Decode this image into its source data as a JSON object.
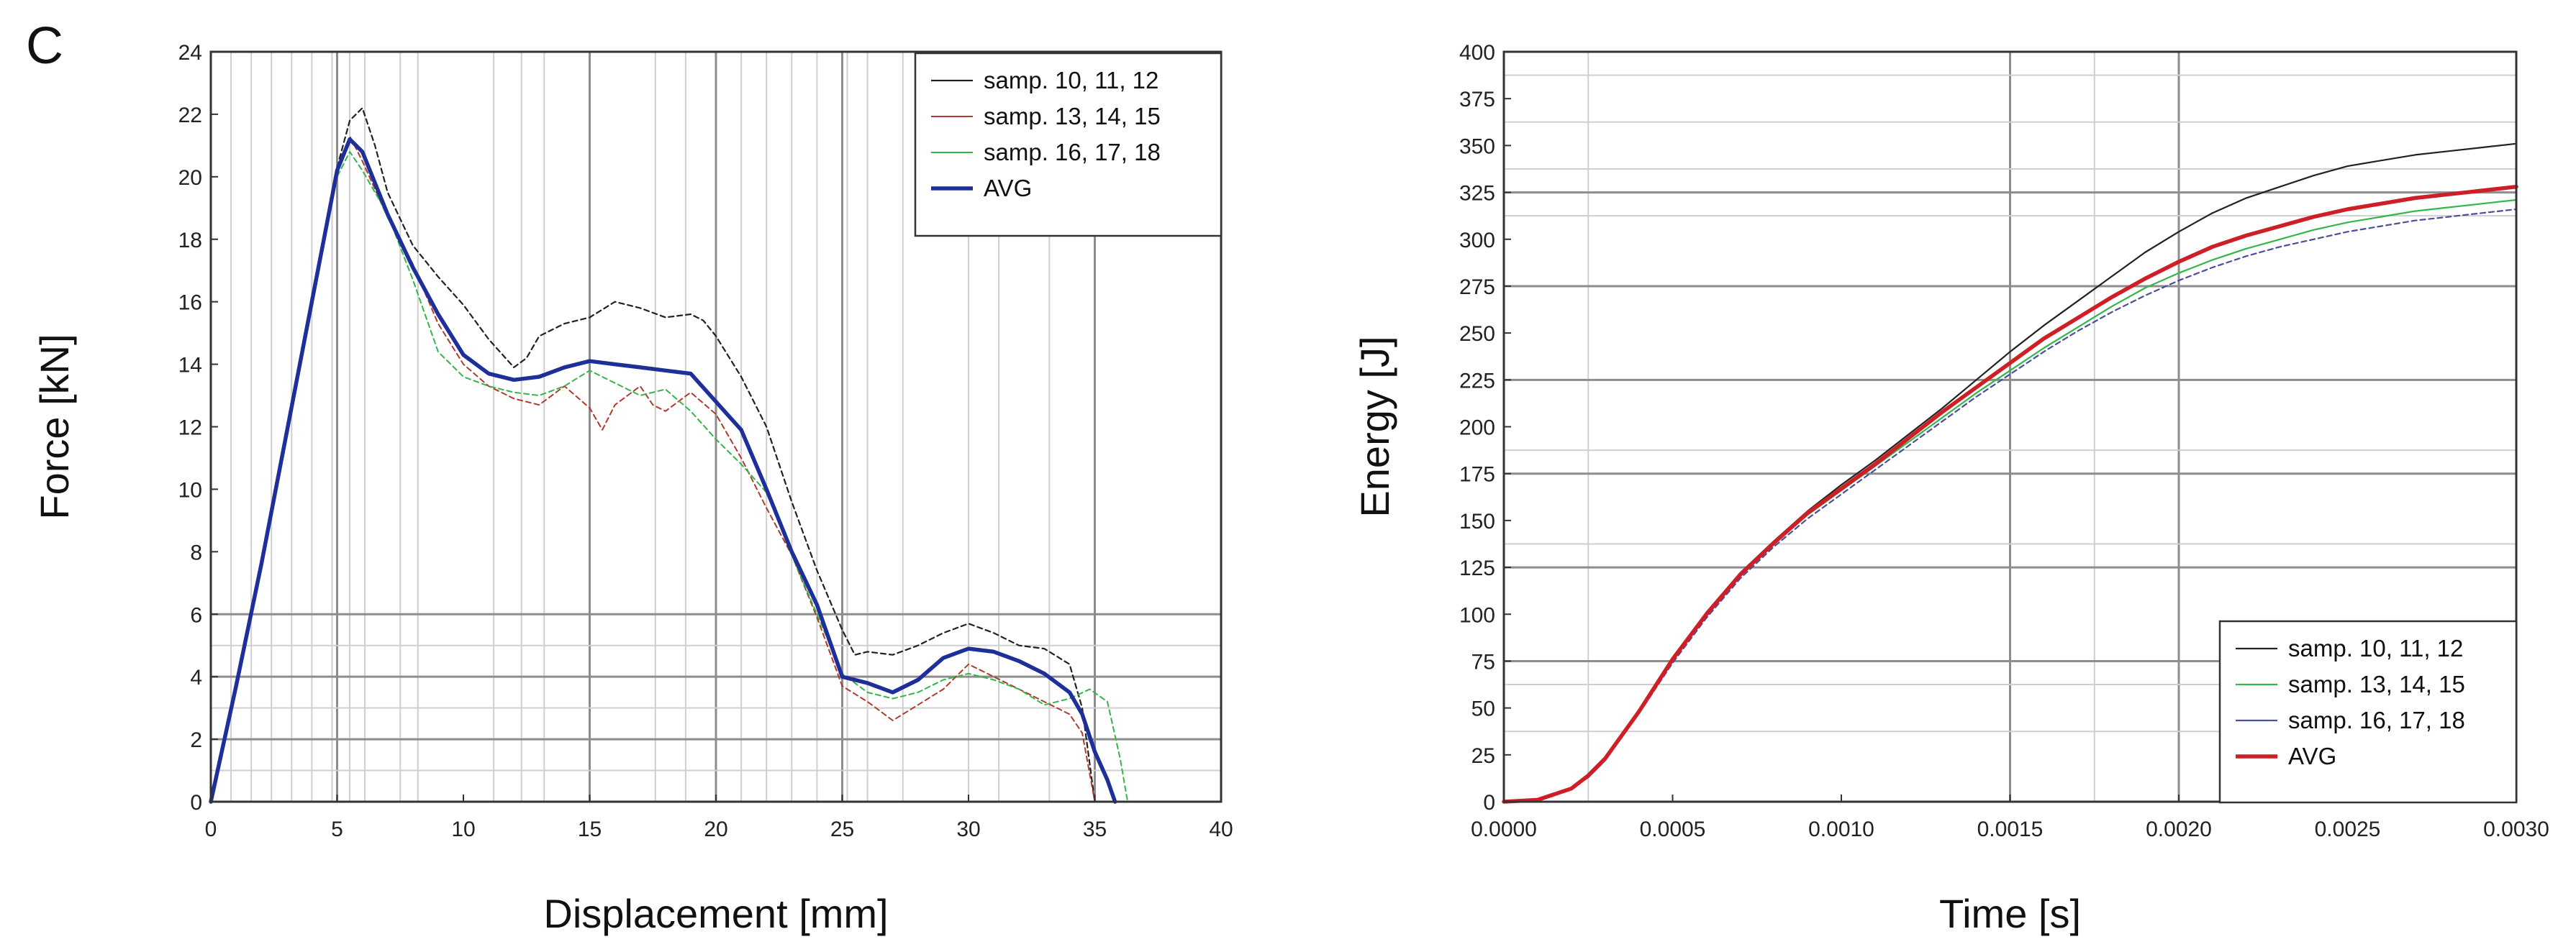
{
  "panel_label": "C",
  "chart_data": [
    {
      "type": "line",
      "xlabel": "Displacement [mm]",
      "ylabel": "Force [kN]",
      "xlim": [
        0,
        40
      ],
      "ylim": [
        0,
        24
      ],
      "xticks": [
        0,
        5,
        10,
        15,
        20,
        25,
        30,
        35,
        40
      ],
      "yticks": [
        0,
        2,
        4,
        6,
        8,
        10,
        12,
        14,
        16,
        18,
        20,
        22,
        24
      ],
      "legend_position": "top-right",
      "series": [
        {
          "name": "samp. 10, 11, 12",
          "color": "#222222",
          "style": "dash",
          "width": 2.2,
          "x": [
            0,
            1,
            2,
            3,
            4,
            5,
            5.5,
            6,
            6.5,
            7,
            8,
            9,
            10,
            11,
            12,
            12.5,
            13,
            14,
            15,
            16,
            17,
            18,
            19,
            19.5,
            20,
            21,
            22,
            23,
            24,
            25,
            25.5,
            26,
            27,
            28,
            29,
            30,
            31,
            32,
            33,
            34,
            34.5,
            35
          ],
          "y": [
            0,
            3.6,
            7.6,
            11.8,
            16.2,
            20.3,
            21.8,
            22.2,
            21.0,
            19.5,
            17.8,
            16.8,
            15.9,
            14.8,
            13.9,
            14.2,
            14.9,
            15.3,
            15.5,
            16.0,
            15.8,
            15.5,
            15.6,
            15.4,
            14.9,
            13.6,
            12.0,
            9.6,
            7.4,
            5.5,
            4.7,
            4.8,
            4.7,
            5.0,
            5.4,
            5.7,
            5.4,
            5.0,
            4.9,
            4.4,
            3.0,
            0
          ]
        },
        {
          "name": "samp. 13, 14, 15",
          "color": "#b03a2e",
          "style": "dash",
          "width": 2.0,
          "x": [
            0,
            1,
            2,
            3,
            4,
            5,
            5.5,
            6,
            7,
            8,
            9,
            10,
            11,
            12,
            13,
            14,
            15,
            15.5,
            16,
            17,
            17.5,
            18,
            19,
            20,
            21,
            22,
            23,
            24,
            25,
            26,
            27,
            28,
            29,
            30,
            31,
            32,
            33,
            34,
            34.5,
            35
          ],
          "y": [
            0,
            3.7,
            7.6,
            11.8,
            16.0,
            20.2,
            21.3,
            20.5,
            18.7,
            17.2,
            15.3,
            14.0,
            13.3,
            12.9,
            12.7,
            13.3,
            12.6,
            11.9,
            12.7,
            13.3,
            12.7,
            12.5,
            13.1,
            12.4,
            11.0,
            9.4,
            7.9,
            5.9,
            3.7,
            3.2,
            2.6,
            3.1,
            3.6,
            4.4,
            4.0,
            3.6,
            3.2,
            2.8,
            2.2,
            0
          ]
        },
        {
          "name": "samp. 16, 17, 18",
          "color": "#33b64a",
          "style": "dash",
          "width": 2.0,
          "x": [
            0,
            1,
            2,
            3,
            4,
            5,
            5.5,
            6,
            7,
            8,
            9,
            10,
            11,
            12,
            13,
            14,
            15,
            16,
            17,
            18,
            19,
            20,
            21,
            22,
            23,
            24,
            25,
            26,
            27,
            28,
            29,
            30,
            31,
            32,
            33,
            34,
            34.8,
            35.5,
            36,
            36.3
          ],
          "y": [
            0,
            3.6,
            7.5,
            11.7,
            15.9,
            20.0,
            20.8,
            20.2,
            18.8,
            16.7,
            14.4,
            13.6,
            13.3,
            13.1,
            13.0,
            13.3,
            13.8,
            13.4,
            13.0,
            13.2,
            12.5,
            11.6,
            10.8,
            9.9,
            7.9,
            6.0,
            4.1,
            3.5,
            3.3,
            3.5,
            3.9,
            4.1,
            3.9,
            3.6,
            3.1,
            3.3,
            3.6,
            3.2,
            1.4,
            0
          ]
        },
        {
          "name": "AVG",
          "color": "#1f2f9a",
          "style": "solid",
          "width": 5.5,
          "x": [
            0,
            1,
            2,
            3,
            4,
            5,
            5.5,
            6,
            7,
            8,
            9,
            10,
            11,
            12,
            13,
            14,
            15,
            16,
            17,
            18,
            19,
            20,
            21,
            22,
            23,
            24,
            25,
            26,
            27,
            28,
            29,
            30,
            31,
            32,
            33,
            34,
            34.5,
            35,
            35.5,
            35.8
          ],
          "y": [
            0,
            3.7,
            7.6,
            11.8,
            16.0,
            20.2,
            21.2,
            20.8,
            18.8,
            17.1,
            15.6,
            14.3,
            13.7,
            13.5,
            13.6,
            13.9,
            14.1,
            14.0,
            13.9,
            13.8,
            13.7,
            12.8,
            11.9,
            10.0,
            8.0,
            6.3,
            4.0,
            3.8,
            3.5,
            3.9,
            4.6,
            4.9,
            4.8,
            4.5,
            4.1,
            3.5,
            2.8,
            1.6,
            0.7,
            0
          ]
        }
      ]
    },
    {
      "type": "line",
      "xlabel": "Time [s]",
      "ylabel": "Energy [J]",
      "xlim": [
        0,
        0.003
      ],
      "ylim": [
        0,
        400
      ],
      "xticks": [
        0,
        0.0005,
        0.001,
        0.0015,
        0.002,
        0.0025,
        0.003
      ],
      "xtick_labels": [
        "0.0000",
        "0.0005",
        "0.0010",
        "0.0015",
        "0.0020",
        "0.0025",
        "0.0030"
      ],
      "yticks": [
        0,
        25,
        50,
        75,
        100,
        125,
        150,
        175,
        200,
        225,
        250,
        275,
        300,
        325,
        350,
        375,
        400
      ],
      "legend_position": "bottom-right",
      "series": [
        {
          "name": "samp. 10, 11, 12",
          "color": "#222222",
          "style": "solid",
          "width": 2.2,
          "x": [
            0,
            0.0001,
            0.0002,
            0.00025,
            0.0003,
            0.0004,
            0.0005,
            0.0006,
            0.0007,
            0.0008,
            0.0009,
            0.001,
            0.0011,
            0.0012,
            0.0013,
            0.0014,
            0.0015,
            0.0016,
            0.0017,
            0.0018,
            0.0019,
            0.002,
            0.0021,
            0.0022,
            0.0023,
            0.0024,
            0.0025,
            0.0026,
            0.0027,
            0.0028,
            0.0029,
            0.003
          ],
          "y": [
            0,
            1,
            7,
            13,
            22,
            48,
            76,
            101,
            122,
            139,
            155,
            169,
            182,
            196,
            210,
            225,
            240,
            254,
            267,
            280,
            293,
            304,
            314,
            322,
            328,
            334,
            339,
            342,
            345,
            347,
            349,
            351
          ]
        },
        {
          "name": "samp. 13, 14, 15",
          "color": "#33b64a",
          "style": "solid",
          "width": 2.2,
          "x": [
            0,
            0.0001,
            0.0002,
            0.00025,
            0.0003,
            0.0004,
            0.0005,
            0.0006,
            0.0007,
            0.0008,
            0.0009,
            0.001,
            0.0011,
            0.0012,
            0.0013,
            0.0014,
            0.0015,
            0.0016,
            0.0017,
            0.0018,
            0.0019,
            0.002,
            0.0021,
            0.0022,
            0.0023,
            0.0024,
            0.0025,
            0.0026,
            0.0027,
            0.0028,
            0.0029,
            0.003
          ],
          "y": [
            0,
            1,
            7,
            14,
            23,
            49,
            76,
            100,
            121,
            138,
            153,
            166,
            179,
            192,
            205,
            218,
            230,
            242,
            253,
            264,
            274,
            282,
            289,
            295,
            300,
            305,
            309,
            312,
            315,
            317,
            319,
            321
          ]
        },
        {
          "name": "samp. 16, 17, 18",
          "color": "#4a4f9c",
          "style": "dash",
          "width": 2.2,
          "x": [
            0,
            0.0001,
            0.0002,
            0.00025,
            0.0003,
            0.0004,
            0.0005,
            0.0006,
            0.0007,
            0.0008,
            0.0009,
            0.001,
            0.0011,
            0.0012,
            0.0013,
            0.0014,
            0.0015,
            0.0016,
            0.0017,
            0.0018,
            0.0019,
            0.002,
            0.0021,
            0.0022,
            0.0023,
            0.0024,
            0.0025,
            0.0026,
            0.0027,
            0.0028,
            0.0029,
            0.003
          ],
          "y": [
            0,
            1,
            7,
            13,
            22,
            47,
            74,
            98,
            119,
            136,
            151,
            164,
            177,
            190,
            203,
            216,
            228,
            240,
            251,
            261,
            270,
            278,
            285,
            291,
            296,
            300,
            304,
            307,
            310,
            312,
            314,
            316
          ]
        },
        {
          "name": "AVG",
          "color": "#cf1f26",
          "style": "solid",
          "width": 5.5,
          "x": [
            0,
            0.0001,
            0.0002,
            0.00025,
            0.0003,
            0.0004,
            0.0005,
            0.0006,
            0.0007,
            0.0008,
            0.0009,
            0.001,
            0.0011,
            0.0012,
            0.0013,
            0.0014,
            0.0015,
            0.0016,
            0.0017,
            0.0018,
            0.0019,
            0.002,
            0.0021,
            0.0022,
            0.0023,
            0.0024,
            0.0025,
            0.0026,
            0.0027,
            0.0028,
            0.0029,
            0.003
          ],
          "y": [
            0,
            1,
            7,
            14,
            23,
            48,
            76,
            100,
            121,
            138,
            154,
            167,
            180,
            194,
            208,
            221,
            234,
            247,
            258,
            269,
            279,
            288,
            296,
            302,
            307,
            312,
            316,
            319,
            322,
            324,
            326,
            328
          ]
        }
      ]
    }
  ]
}
